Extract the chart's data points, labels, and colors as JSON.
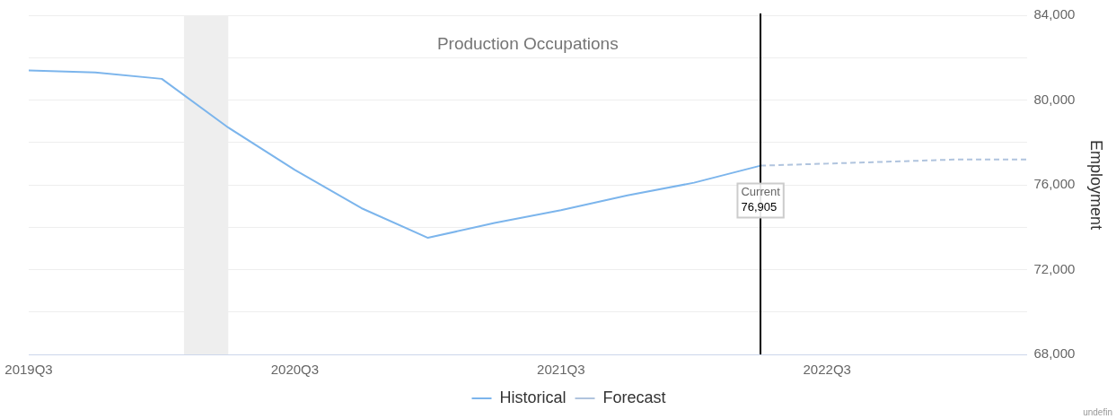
{
  "chart_data": {
    "type": "line",
    "title": "Production Occupations",
    "ylabel": "Employment",
    "series": [
      {
        "name": "Historical",
        "color": "#7cb5ec",
        "line_style": "solid",
        "x": [
          "2019-07",
          "2019-10",
          "2020-01",
          "2020-04",
          "2020-07",
          "2020-10",
          "2021-01",
          "2021-04",
          "2021-07",
          "2021-10",
          "2022-01",
          "2022-04"
        ],
        "values": [
          81400,
          81300,
          81000,
          78700,
          76700,
          74900,
          73500,
          74200,
          74800,
          75500,
          76100,
          76905
        ]
      },
      {
        "name": "Forecast",
        "color": "#b0c4de",
        "line_style": "dashed",
        "x": [
          "2022-04",
          "2022-07",
          "2022-10",
          "2023-01",
          "2023-04"
        ],
        "values": [
          76905,
          77000,
          77100,
          77200,
          77200
        ]
      }
    ],
    "xlim": [
      "2019-07",
      "2023-04"
    ],
    "xticks": [
      {
        "value": "2019-07",
        "label": "2019Q3"
      },
      {
        "value": "2020-07",
        "label": "2020Q3"
      },
      {
        "value": "2021-07",
        "label": "2021Q3"
      },
      {
        "value": "2022-07",
        "label": "2022Q3"
      }
    ],
    "ylim": [
      68000,
      84000
    ],
    "yticks": [
      {
        "value": 68000,
        "label": "68,000"
      },
      {
        "value": 70000,
        "label": null
      },
      {
        "value": 72000,
        "label": "72,000"
      },
      {
        "value": 74000,
        "label": null
      },
      {
        "value": 76000,
        "label": "76,000"
      },
      {
        "value": 78000,
        "label": null
      },
      {
        "value": 80000,
        "label": "80,000"
      },
      {
        "value": 82000,
        "label": null
      },
      {
        "value": 84000,
        "label": "84,000"
      }
    ],
    "ref_lines": [
      {
        "axis": "x",
        "value": "2022-04",
        "color": "#000000"
      }
    ],
    "bands": [
      {
        "axis": "x",
        "from": "2020-02",
        "to": "2020-04",
        "color": "#eeeeee"
      }
    ],
    "annotations": [
      {
        "text": "Current\n76,905",
        "x": "2022-04",
        "y": 76905
      },
      "undefin"
    ],
    "grid": "y",
    "legend": "bottom",
    "marker": "none"
  }
}
